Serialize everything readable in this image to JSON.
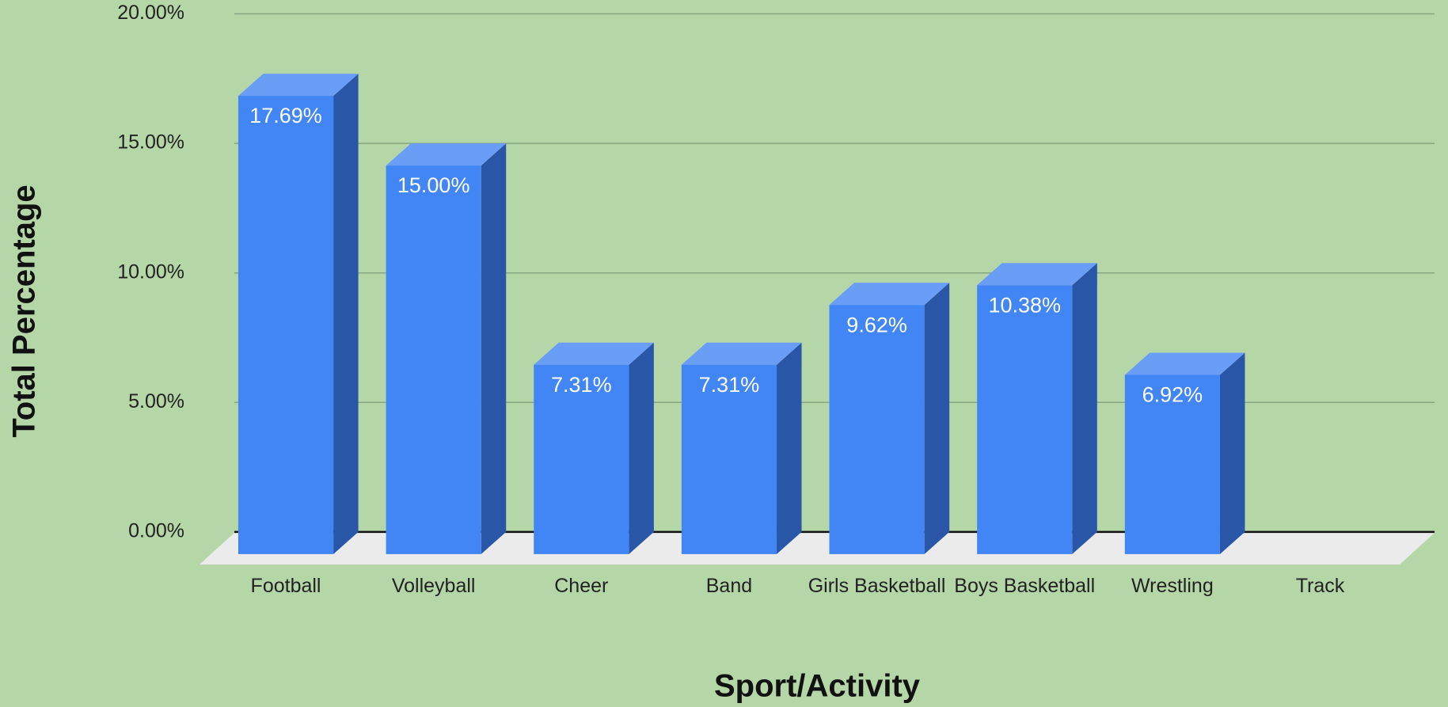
{
  "chart_data": {
    "type": "bar3d",
    "xlabel": "Sport/Activity",
    "ylabel": "Total Percentage",
    "categories": [
      "Football",
      "Volleyball",
      "Cheer",
      "Band",
      "Girls Basketball",
      "Boys Basketball",
      "Wrestling",
      "Track"
    ],
    "values": [
      17.69,
      15.0,
      7.31,
      7.31,
      9.62,
      10.38,
      6.92,
      null
    ],
    "value_labels": [
      "17.69%",
      "15.00%",
      "7.31%",
      "7.31%",
      "9.62%",
      "10.38%",
      "6.92%",
      null
    ],
    "color": "#4285f4",
    "ylim": [
      0,
      20
    ],
    "yticks": [
      {
        "value": 0,
        "label": "0.00%"
      },
      {
        "value": 5,
        "label": "5.00%"
      },
      {
        "value": 10,
        "label": "10.00%"
      },
      {
        "value": 15,
        "label": "15.00%"
      },
      {
        "value": 20,
        "label": "20.00%"
      }
    ],
    "grid": true
  }
}
